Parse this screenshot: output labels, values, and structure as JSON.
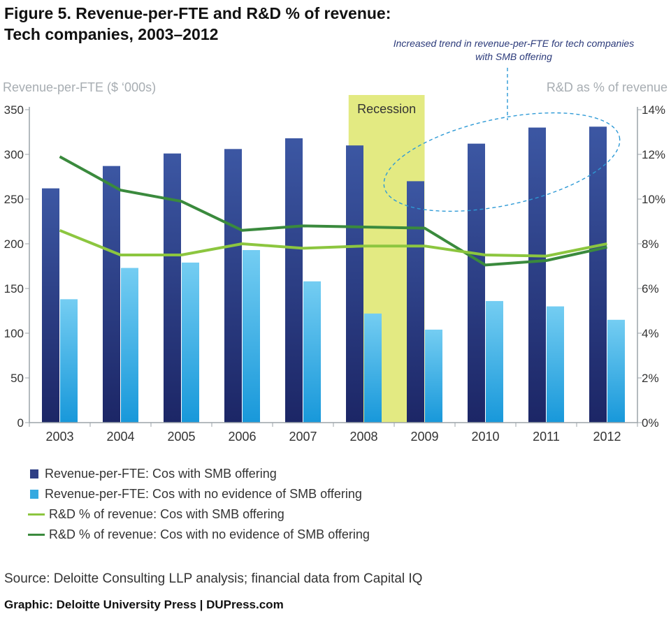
{
  "title_line1": "Figure 5. Revenue-per-FTE and R&D % of revenue:",
  "title_line2": "Tech companies, 2003–2012",
  "annotation": "Increased trend in revenue-per-FTE for tech companies with SMB offering",
  "source": "Source: Deloitte Consulting LLP analysis; financial data from Capital IQ",
  "credit": "Graphic: Deloitte University Press  |  DUPress.com",
  "colors": {
    "bar_smb": "#2e3f85",
    "bar_no_smb": "#35a9e0",
    "line_smb": "#8cc63f",
    "line_no_smb": "#3a8a3d",
    "recession": "#e3ea82",
    "annotation": "#2e9ad6"
  },
  "chart_data": {
    "type": "bar",
    "title": "Figure 5. Revenue-per-FTE and R&D % of revenue: Tech companies, 2003–2012",
    "categories": [
      "2003",
      "2004",
      "2005",
      "2006",
      "2007",
      "2008",
      "2009",
      "2010",
      "2011",
      "2012"
    ],
    "ylabel_left": "Revenue-per-FTE ($ ‘000s)",
    "ylabel_right": "R&D as % of revenue",
    "ylim_left": [
      0,
      350
    ],
    "yticks_left": [
      "0",
      "50",
      "100",
      "150",
      "200",
      "250",
      "300",
      "350"
    ],
    "ylim_right": [
      0,
      14
    ],
    "yticks_right": [
      "0%",
      "2%",
      "4%",
      "6%",
      "8%",
      "10%",
      "12%",
      "14%"
    ],
    "highlight": {
      "label": "Recession",
      "from": "2008",
      "to": "2009"
    },
    "series": [
      {
        "name": "Revenue-per-FTE: Cos with SMB offering",
        "kind": "bar",
        "axis": "left",
        "values": [
          262,
          287,
          301,
          306,
          318,
          310,
          270,
          312,
          330,
          331
        ]
      },
      {
        "name": "Revenue-per-FTE: Cos with no evidence of SMB offering",
        "kind": "bar",
        "axis": "left",
        "values": [
          138,
          173,
          179,
          193,
          158,
          122,
          104,
          136,
          130,
          115
        ]
      },
      {
        "name": "R&D % of revenue: Cos with SMB offering",
        "kind": "line",
        "axis": "right",
        "values": [
          8.6,
          7.5,
          7.5,
          8.0,
          7.8,
          7.9,
          7.9,
          7.5,
          7.45,
          8.0
        ]
      },
      {
        "name": "R&D % of revenue: Cos with no evidence of SMB offering",
        "kind": "line",
        "axis": "right",
        "values": [
          11.9,
          10.4,
          9.9,
          8.6,
          8.8,
          8.75,
          8.7,
          7.05,
          7.25,
          7.85
        ]
      }
    ]
  }
}
